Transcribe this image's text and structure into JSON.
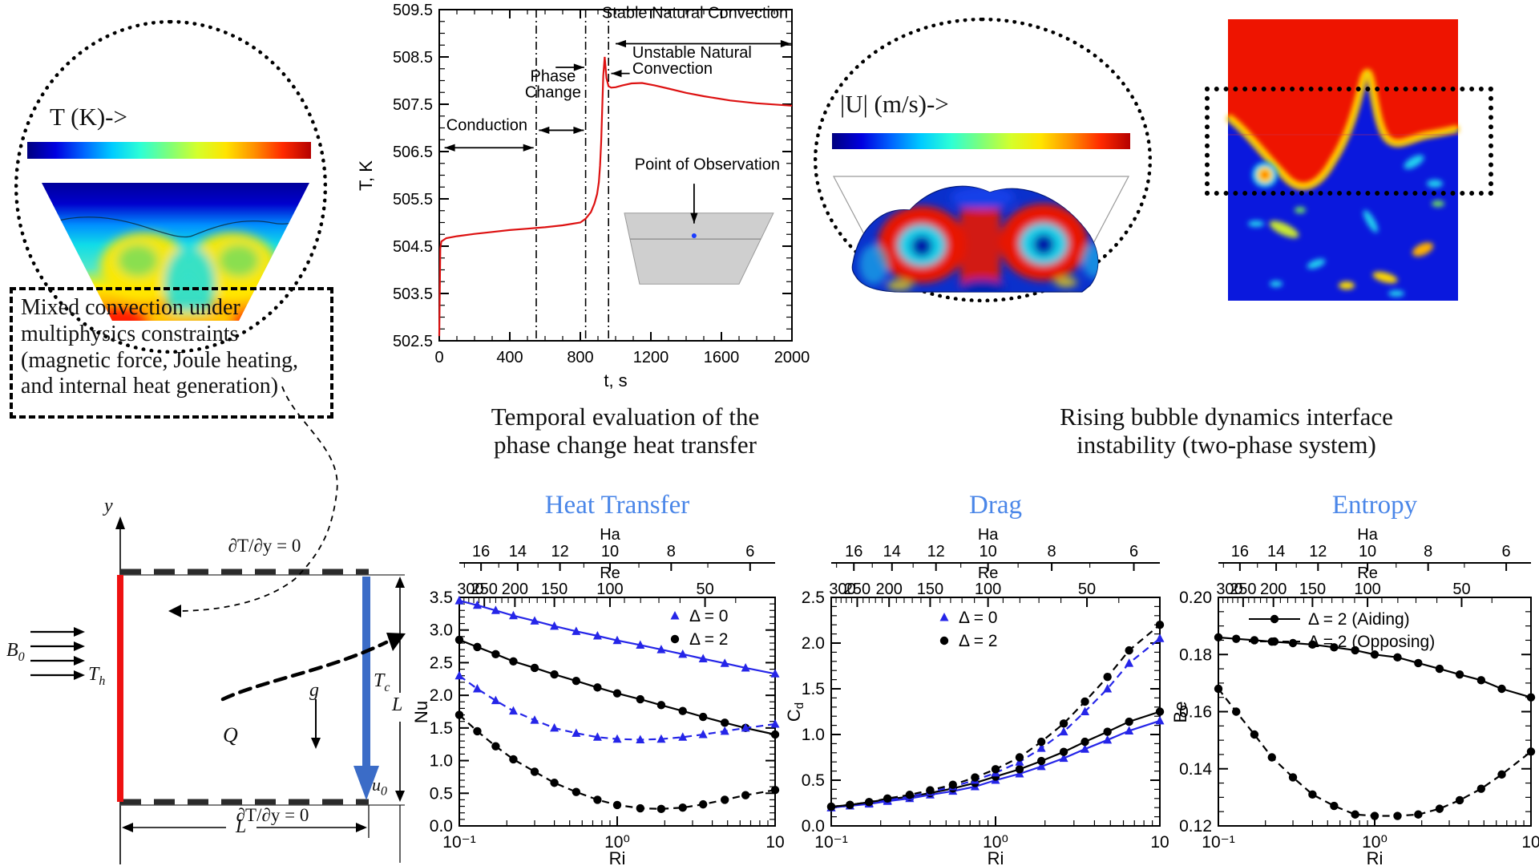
{
  "accent_blue": "#4a86e8",
  "curve_red": "#dd1111",
  "series_blue": "#2525e8",
  "colormap_jet": [
    "#00007f",
    "#0000e0",
    "#0066ff",
    "#00ccff",
    "#2effd5",
    "#7dff7a",
    "#d4ff2b",
    "#ffe400",
    "#ff9000",
    "#ff2a00",
    "#b40000"
  ],
  "panel_temperature": {
    "colorbar_label": "T (K)->"
  },
  "panel_velocity": {
    "colorbar_label": "|U| (m/s)->"
  },
  "caption_phase": {
    "line1": "Temporal evaluation of the",
    "line2": "phase change heat transfer"
  },
  "caption_bubble": {
    "line1": "Rising bubble dynamics interface",
    "line2": "instability (two-phase system)"
  },
  "note_box": {
    "line1": "Mixed convection under",
    "line2": "multiphysics constraints",
    "line3": "(magnetic force, Joule heating,",
    "line4": "and internal heat generation)"
  },
  "schematic": {
    "y_axis_label": "y",
    "top_bc": "∂T/∂y = 0",
    "bottom_bc": "∂T/∂y = 0",
    "B_sym": "B",
    "B_sub": "0",
    "Th_sym": "T",
    "Th_sub": "h",
    "Tc_sym": "T",
    "Tc_sub": "c",
    "u_sym": "u",
    "u_sub": "0",
    "Q": "Q",
    "g": "g",
    "L_width": "L",
    "L_height": "L"
  },
  "chart_data": [
    {
      "id": "temperature_history",
      "type": "line",
      "xlabel": "t, s",
      "ylabel": "T, K",
      "x_scale": "linear",
      "xlim": [
        0,
        2000
      ],
      "ylim": [
        502.5,
        509.5
      ],
      "x_ticks": [
        {
          "v": 0,
          "label": "0"
        },
        {
          "v": 400,
          "label": "400"
        },
        {
          "v": 800,
          "label": "800"
        },
        {
          "v": 1200,
          "label": "1200"
        },
        {
          "v": 1600,
          "label": "1600"
        },
        {
          "v": 2000,
          "label": "2000"
        }
      ],
      "y_tick_values": [
        502.5,
        503.5,
        504.5,
        505.5,
        506.5,
        507.5,
        508.5,
        509.5
      ],
      "series": [
        {
          "name": "Temperature at point of observation",
          "color": "#dd1111",
          "style": "solid",
          "marker": "none",
          "x": [
            0,
            6,
            12,
            40,
            100,
            200,
            300,
            400,
            500,
            600,
            700,
            800,
            830,
            860,
            880,
            895,
            905,
            912,
            918,
            924,
            930,
            938,
            948,
            960,
            975,
            1000,
            1040,
            1090,
            1150,
            1220,
            1300,
            1400,
            1500,
            1650,
            1800,
            2000
          ],
          "y": [
            502.6,
            504.45,
            504.6,
            504.67,
            504.71,
            504.76,
            504.8,
            504.84,
            504.87,
            504.9,
            504.94,
            505.0,
            505.08,
            505.22,
            505.4,
            505.6,
            505.85,
            506.2,
            506.7,
            507.4,
            508.1,
            508.5,
            508.05,
            507.88,
            507.85,
            507.86,
            507.9,
            507.94,
            507.95,
            507.9,
            507.83,
            507.74,
            507.67,
            507.58,
            507.52,
            507.47
          ]
        }
      ],
      "annotations": [
        {
          "type": "vline",
          "x": 550
        },
        {
          "type": "vline",
          "x": 830
        },
        {
          "type": "vline",
          "x": 960
        },
        {
          "type": "polygon",
          "pts": [
            [
              1050,
              505.2
            ],
            [
              1895,
              505.2
            ],
            [
              1700,
              503.7
            ],
            [
              1136,
              503.7
            ]
          ],
          "fill": "#cfcfcf",
          "stroke": "#9a9a9a"
        },
        {
          "type": "line",
          "x1": 1082,
          "y1": 504.65,
          "x2": 1823,
          "y2": 504.65,
          "stroke": "#8a8a8a"
        },
        {
          "type": "dot",
          "x": 1445,
          "y": 504.72,
          "color": "#1a3cff"
        },
        {
          "type": "arrow",
          "x1": 30,
          "y1": 506.58,
          "x2": 535,
          "y2": 506.58,
          "heads": "both"
        },
        {
          "type": "text",
          "x": 270,
          "y": 506.95,
          "lines": [
            "Conduction"
          ],
          "align": "middle"
        },
        {
          "type": "text",
          "x": 645,
          "y": 507.98,
          "lines": [
            "Phase",
            "Change"
          ],
          "align": "middle"
        },
        {
          "type": "arrow",
          "x1": 565,
          "y1": 506.95,
          "x2": 820,
          "y2": 506.95,
          "heads": "both"
        },
        {
          "type": "arrow",
          "x1": 660,
          "y1": 508.28,
          "x2": 822,
          "y2": 508.28,
          "heads": "end"
        },
        {
          "type": "text",
          "x": 1450,
          "y": 509.32,
          "lines": [
            "Stable Natural Convection"
          ],
          "align": "middle"
        },
        {
          "type": "arrow",
          "x1": 1000,
          "y1": 508.78,
          "x2": 1995,
          "y2": 508.78,
          "heads": "both"
        },
        {
          "type": "text",
          "x": 1095,
          "y": 508.48,
          "lines": [
            "Unstable Natural",
            "Convection"
          ],
          "align": "start"
        },
        {
          "type": "arrow",
          "x1": 1080,
          "y1": 508.15,
          "x2": 975,
          "y2": 508.15,
          "heads": "end"
        },
        {
          "type": "text",
          "x": 1520,
          "y": 506.12,
          "lines": [
            "Point of Observation"
          ],
          "align": "middle"
        },
        {
          "type": "arrow",
          "x1": 1445,
          "y1": 505.82,
          "x2": 1445,
          "y2": 504.98,
          "heads": "end"
        }
      ]
    },
    {
      "id": "heat_transfer",
      "title": "Heat Transfer",
      "type": "line",
      "xlabel": "Ri",
      "ylabel": "Nu",
      "x_scale": "log",
      "xlim": [
        0.1,
        10
      ],
      "ylim": [
        0,
        3.5
      ],
      "x_ticks": [
        {
          "v": 0.1,
          "label": "10⁻¹"
        },
        {
          "v": 1,
          "label": "10⁰"
        },
        {
          "v": 10,
          "label": "10"
        }
      ],
      "top_axes": [
        {
          "label": "Ha",
          "ticks": [
            16,
            14,
            12,
            10,
            8,
            6
          ]
        },
        {
          "label": "Re",
          "ticks": [
            300,
            250,
            200,
            150,
            100,
            50
          ]
        }
      ],
      "legend": [
        {
          "marker": "triangle",
          "color": "#2525e8",
          "label": "Δ = 0"
        },
        {
          "marker": "circle",
          "color": "#000000",
          "label": "Δ = 2"
        }
      ],
      "x": [
        0.1,
        0.13,
        0.17,
        0.22,
        0.3,
        0.4,
        0.55,
        0.75,
        1.0,
        1.4,
        1.9,
        2.6,
        3.5,
        4.8,
        6.5,
        10
      ],
      "series": [
        {
          "name": "Δ = 0 aiding",
          "style": "solid",
          "color": "#2525e8",
          "marker": "triangle",
          "y": [
            3.45,
            3.38,
            3.3,
            3.22,
            3.14,
            3.06,
            2.98,
            2.91,
            2.84,
            2.77,
            2.7,
            2.63,
            2.56,
            2.49,
            2.42,
            2.33
          ]
        },
        {
          "name": "Δ = 2 aiding",
          "style": "solid",
          "color": "#000000",
          "marker": "circle",
          "y": [
            2.85,
            2.74,
            2.63,
            2.52,
            2.42,
            2.32,
            2.22,
            2.12,
            2.03,
            1.94,
            1.85,
            1.76,
            1.67,
            1.58,
            1.5,
            1.4
          ]
        },
        {
          "name": "Δ = 0 opposing",
          "style": "dashed",
          "color": "#2525e8",
          "marker": "triangle",
          "y": [
            2.3,
            2.1,
            1.92,
            1.76,
            1.62,
            1.5,
            1.42,
            1.36,
            1.33,
            1.32,
            1.33,
            1.36,
            1.4,
            1.45,
            1.5,
            1.56
          ]
        },
        {
          "name": "Δ = 2 opposing",
          "style": "dashed",
          "color": "#000000",
          "marker": "circle",
          "y": [
            1.7,
            1.45,
            1.22,
            1.02,
            0.83,
            0.66,
            0.52,
            0.4,
            0.32,
            0.27,
            0.26,
            0.28,
            0.33,
            0.4,
            0.47,
            0.55
          ]
        }
      ]
    },
    {
      "id": "drag",
      "title": "Drag",
      "type": "line",
      "xlabel": "Ri",
      "ylabel": "C",
      "ylabel_sub": "d",
      "x_scale": "log",
      "xlim": [
        0.1,
        10
      ],
      "ylim": [
        0,
        2.5
      ],
      "x_ticks": [
        {
          "v": 0.1,
          "label": "10⁻¹"
        },
        {
          "v": 1,
          "label": "10⁰"
        },
        {
          "v": 10,
          "label": "10"
        }
      ],
      "top_axes": [
        {
          "label": "Ha",
          "ticks": [
            16,
            14,
            12,
            10,
            8,
            6
          ]
        },
        {
          "label": "Re",
          "ticks": [
            300,
            250,
            200,
            150,
            100,
            50
          ]
        }
      ],
      "legend": [
        {
          "marker": "triangle",
          "color": "#2525e8",
          "label": "Δ = 0"
        },
        {
          "marker": "circle",
          "color": "#000000",
          "label": "Δ = 2"
        }
      ],
      "x": [
        0.1,
        0.13,
        0.17,
        0.22,
        0.3,
        0.4,
        0.55,
        0.75,
        1.0,
        1.4,
        1.9,
        2.6,
        3.5,
        4.8,
        6.5,
        10
      ],
      "series": [
        {
          "name": "Δ = 0 aiding",
          "style": "solid",
          "color": "#2525e8",
          "marker": "triangle",
          "y": [
            0.2,
            0.22,
            0.24,
            0.27,
            0.3,
            0.34,
            0.38,
            0.43,
            0.5,
            0.57,
            0.65,
            0.74,
            0.84,
            0.94,
            1.04,
            1.15
          ]
        },
        {
          "name": "Δ = 2 aiding",
          "style": "solid",
          "color": "#000000",
          "marker": "circle",
          "y": [
            0.21,
            0.23,
            0.26,
            0.29,
            0.32,
            0.36,
            0.41,
            0.47,
            0.54,
            0.62,
            0.71,
            0.81,
            0.92,
            1.03,
            1.14,
            1.25
          ]
        },
        {
          "name": "Δ = 0 opposing",
          "style": "dashed",
          "color": "#2525e8",
          "marker": "triangle",
          "y": [
            0.2,
            0.22,
            0.25,
            0.28,
            0.32,
            0.37,
            0.43,
            0.5,
            0.58,
            0.7,
            0.85,
            1.03,
            1.25,
            1.5,
            1.78,
            2.05
          ]
        },
        {
          "name": "Δ = 2 opposing",
          "style": "dashed",
          "color": "#000000",
          "marker": "circle",
          "y": [
            0.21,
            0.23,
            0.26,
            0.3,
            0.34,
            0.39,
            0.45,
            0.53,
            0.62,
            0.75,
            0.92,
            1.12,
            1.36,
            1.63,
            1.92,
            2.2
          ]
        }
      ]
    },
    {
      "id": "entropy",
      "title": "Entropy",
      "type": "line",
      "xlabel": "Ri",
      "ylabel": "Be",
      "x_scale": "log",
      "xlim": [
        0.1,
        10
      ],
      "ylim": [
        0.12,
        0.2
      ],
      "x_ticks": [
        {
          "v": 0.1,
          "label": "10⁻¹"
        },
        {
          "v": 1,
          "label": "10⁰"
        },
        {
          "v": 10,
          "label": "10"
        }
      ],
      "top_axes": [
        {
          "label": "Ha",
          "ticks": [
            16,
            14,
            12,
            10,
            8,
            6
          ]
        },
        {
          "label": "Re",
          "ticks": [
            300,
            250,
            200,
            150,
            100,
            50
          ]
        }
      ],
      "legend": [
        {
          "marker": "circle",
          "color": "#000000",
          "line": "solid",
          "label": "Δ = 2 (Aiding)"
        },
        {
          "marker": "circle",
          "color": "#000000",
          "line": "dashed",
          "label": "Δ = 2 (Opposing)"
        }
      ],
      "x": [
        0.1,
        0.13,
        0.17,
        0.22,
        0.3,
        0.4,
        0.55,
        0.75,
        1.0,
        1.4,
        1.9,
        2.6,
        3.5,
        4.8,
        6.5,
        10
      ],
      "series": [
        {
          "name": "Δ = 2 (Aiding)",
          "style": "solid",
          "color": "#000000",
          "marker": "circle",
          "y": [
            0.186,
            0.1855,
            0.185,
            0.1845,
            0.184,
            0.1835,
            0.1825,
            0.1815,
            0.18,
            0.179,
            0.177,
            0.175,
            0.173,
            0.171,
            0.168,
            0.165
          ]
        },
        {
          "name": "Δ = 2 (Opposing)",
          "style": "dashed",
          "color": "#000000",
          "marker": "circle",
          "y": [
            0.168,
            0.16,
            0.152,
            0.144,
            0.137,
            0.131,
            0.127,
            0.124,
            0.1235,
            0.1235,
            0.124,
            0.126,
            0.129,
            0.133,
            0.138,
            0.146
          ]
        }
      ]
    }
  ]
}
